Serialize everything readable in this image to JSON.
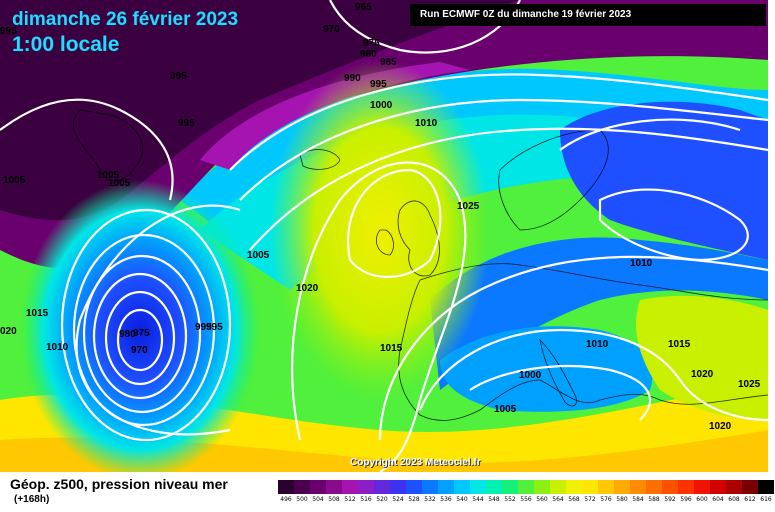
{
  "header": {
    "date_title": "dimanche 26 février 2023",
    "local_time": "1:00 locale",
    "run_info": "Run ECMWF 0Z du dimanche 19 février 2023"
  },
  "footer": {
    "copyright": "Copyright 2023 Meteociel.fr",
    "legend_title": "Géop. z500, pression niveau mer",
    "legend_subtitle": "(+168h)"
  },
  "isobar_labels": [
    "965",
    "970",
    "975",
    "980",
    "985",
    "990",
    "995",
    "1000",
    "1010",
    "995",
    "995",
    "1005",
    "1005",
    "1005",
    "1025",
    "1010",
    "1005",
    "1020",
    "1015",
    "1010",
    "980",
    "975",
    "970",
    "995",
    "995",
    "1015",
    "1000",
    "1010",
    "1015",
    "1020",
    "1025",
    "1005",
    "1020",
    "020",
    "995"
  ],
  "scale": {
    "values": [
      "496",
      "500",
      "504",
      "508",
      "512",
      "516",
      "520",
      "524",
      "528",
      "532",
      "536",
      "540",
      "544",
      "548",
      "552",
      "556",
      "560",
      "564",
      "568",
      "572",
      "576",
      "580",
      "584",
      "588",
      "592",
      "596",
      "600",
      "604",
      "608",
      "612",
      "616"
    ],
    "colors": [
      "#2a0030",
      "#4a004f",
      "#6a006e",
      "#8a0a8e",
      "#a514b0",
      "#8c1ec8",
      "#6428dc",
      "#3c32f0",
      "#1e50ff",
      "#0a78ff",
      "#00a0ff",
      "#00c8ff",
      "#00e6e6",
      "#00f0b4",
      "#14f078",
      "#50f03c",
      "#8cf014",
      "#c8f000",
      "#f0f000",
      "#ffe600",
      "#ffc800",
      "#ffaa00",
      "#ff8c00",
      "#ff6e00",
      "#ff5000",
      "#ff3200",
      "#f01400",
      "#d20000",
      "#aa0000",
      "#780000",
      "#000000"
    ]
  }
}
